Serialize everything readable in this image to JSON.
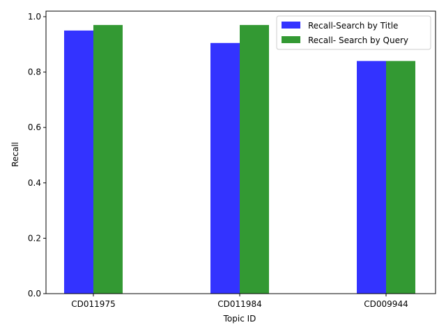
{
  "chart_data": {
    "type": "bar",
    "title": "",
    "xlabel": "Topic ID",
    "ylabel": "Recall",
    "categories": [
      "CD011975",
      "CD011984",
      "CD009944"
    ],
    "series": [
      {
        "name": "Recall-Search by Title",
        "values": [
          0.95,
          0.905,
          0.84
        ],
        "color": "#3333ff"
      },
      {
        "name": "Recall- Search by Query",
        "values": [
          0.97,
          0.97,
          0.84
        ],
        "color": "#339933"
      }
    ],
    "ylim": [
      0,
      1.02
    ],
    "yticks": [
      0.0,
      0.2,
      0.4,
      0.6,
      0.8,
      1.0
    ],
    "ytick_labels": [
      "0.0",
      "0.2",
      "0.4",
      "0.6",
      "0.8",
      "1.0"
    ],
    "grid": false,
    "legend_position": "top-right"
  }
}
